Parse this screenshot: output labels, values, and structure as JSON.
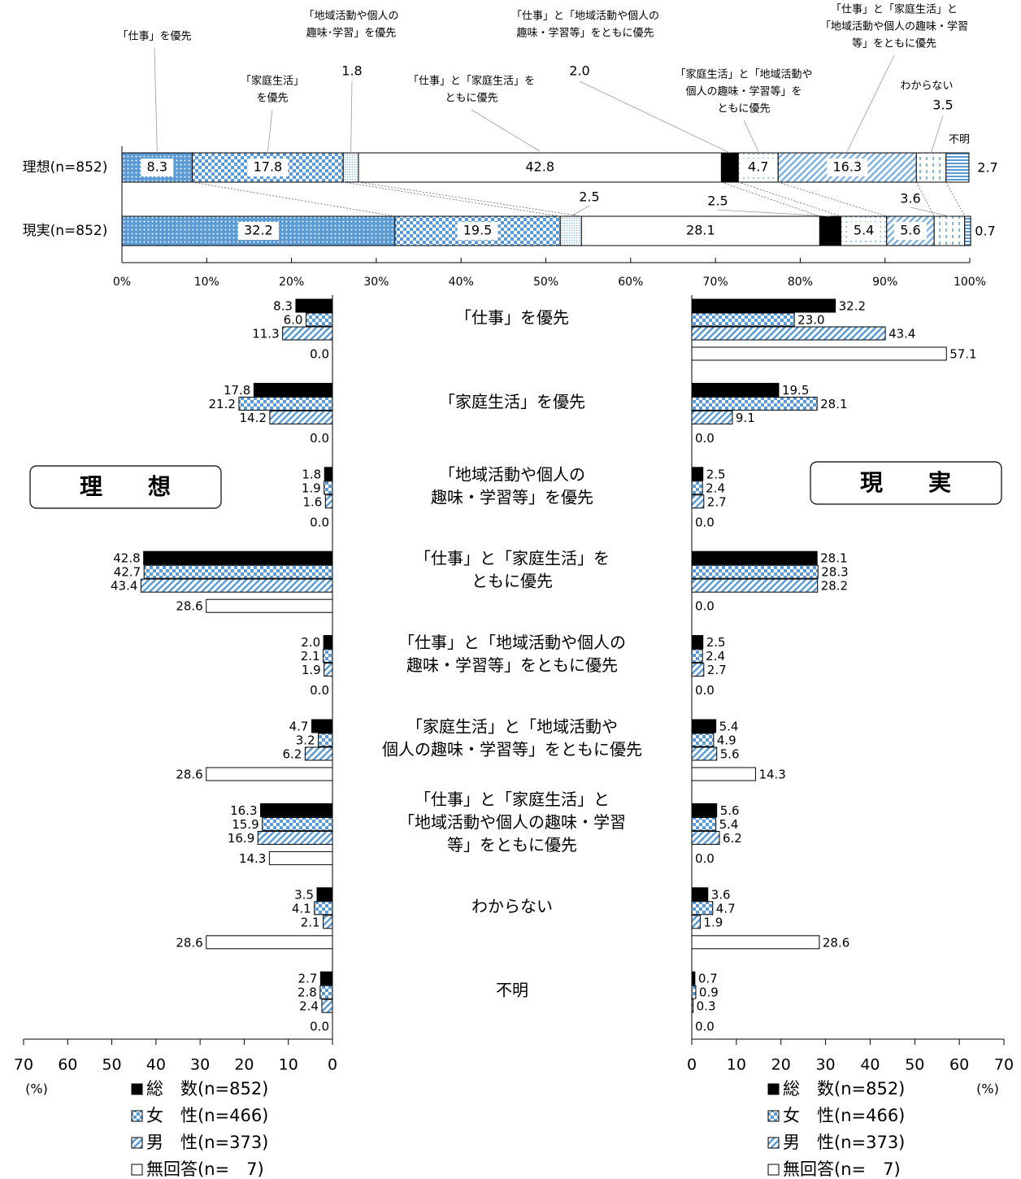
{
  "chart_data": [
    {
      "type": "stacked-bar-h",
      "categories": [
        "理想(n=852)",
        "現実(n=852)"
      ],
      "series": [
        {
          "name": [
            "「仕事」を優先"
          ],
          "color": "#5b9bd5",
          "values": [
            8.3,
            32.2
          ],
          "value_labels": [
            "8.3",
            "32.2"
          ]
        },
        {
          "name": [
            "「家庭生活」",
            "を優先"
          ],
          "color": "#5b9bd5",
          "values": [
            17.8,
            19.5
          ],
          "value_labels": [
            "17.8",
            "19.5"
          ]
        },
        {
          "name": [
            "「地域活動や個人の",
            "趣味･学習」を優先"
          ],
          "color": "#7fb2e0",
          "values": [
            1.8,
            2.5
          ],
          "value_labels": [
            "1.8",
            "2.5"
          ]
        },
        {
          "name": [
            "「仕事」と「家庭生活」を",
            "ともに優先"
          ],
          "color": "#ffffff",
          "values": [
            42.8,
            28.1
          ],
          "value_labels": [
            "42.8",
            "28.1"
          ]
        },
        {
          "name": [
            "「仕事」と「地域活動や個人の",
            "趣味・学習等」をともに優先"
          ],
          "color": "#000000",
          "values": [
            2.0,
            2.5
          ],
          "value_labels": [
            "2.0",
            "2.5"
          ]
        },
        {
          "name": [
            "「家庭生活」と「地域活動や",
            "個人の趣味・学習等」を",
            "ともに優先"
          ],
          "color": "#5b9bd5",
          "values": [
            4.7,
            5.4
          ],
          "value_labels": [
            "4.7",
            "5.4"
          ]
        },
        {
          "name": [
            "「仕事」と「家庭生活」と",
            "「地域活動や個人の趣味・学習",
            "等」をともに優先"
          ],
          "color": "#7fb2e0",
          "values": [
            16.3,
            5.6
          ],
          "value_labels": [
            "16.3",
            "5.6"
          ]
        },
        {
          "name": [
            "わからない"
          ],
          "color": "#5b9bd5",
          "values": [
            3.5,
            3.6
          ],
          "value_labels": [
            "3.5",
            "3.6"
          ]
        },
        {
          "name": [
            "不明"
          ],
          "color": "#5b9bd5",
          "values": [
            2.7,
            0.7
          ],
          "value_labels": [
            "2.7",
            "0.7"
          ]
        }
      ],
      "xlim": [
        0,
        100
      ],
      "xticks": [
        {
          "value": 0,
          "label": "0%"
        },
        {
          "value": 10,
          "label": "10%"
        },
        {
          "value": 20,
          "label": "20%"
        },
        {
          "value": 30,
          "label": "30%"
        },
        {
          "value": 40,
          "label": "40%"
        },
        {
          "value": 50,
          "label": "50%"
        },
        {
          "value": 60,
          "label": "60%"
        },
        {
          "value": 70,
          "label": "70%"
        },
        {
          "value": 80,
          "label": "80%"
        },
        {
          "value": 90,
          "label": "90%"
        },
        {
          "value": 100,
          "label": "100%"
        }
      ]
    },
    {
      "type": "grouped-bar-h",
      "label": "理　　想",
      "unit": "(%)",
      "categories": [
        [
          "「仕事」を優先"
        ],
        [
          "「家庭生活」を優先"
        ],
        [
          "「地域活動や個人の",
          "趣味・学習等」を優先"
        ],
        [
          "「仕事」と「家庭生活」を",
          "ともに優先"
        ],
        [
          "「仕事」と「地域活動や個人の",
          "趣味・学習等」をともに優先"
        ],
        [
          "「家庭生活」と「地域活動や",
          "個人の趣味・学習等」をともに優先"
        ],
        [
          "「仕事」と「家庭生活」と",
          "「地域活動や個人の趣味・学習",
          "等」をともに優先"
        ],
        [
          "わからない"
        ],
        [
          "不明"
        ]
      ],
      "series": [
        {
          "name": "総　数(n=852)",
          "color": "#000000",
          "values": [
            8.3,
            17.8,
            1.8,
            42.8,
            2.0,
            4.7,
            16.3,
            3.5,
            2.7
          ],
          "value_labels": [
            "8.3",
            "17.8",
            "1.8",
            "42.8",
            "2.0",
            "4.7",
            "16.3",
            "3.5",
            "2.7"
          ]
        },
        {
          "name": "女　性(n=466)",
          "color": "#5b9bd5",
          "values": [
            6.0,
            21.2,
            1.9,
            42.7,
            2.1,
            3.2,
            15.9,
            4.1,
            2.8
          ],
          "value_labels": [
            "6.0",
            "21.2",
            "1.9",
            "42.7",
            "2.1",
            "3.2",
            "15.9",
            "4.1",
            "2.8"
          ]
        },
        {
          "name": "男　性(n=373)",
          "color": "#5b9bd5",
          "values": [
            11.3,
            14.2,
            1.6,
            43.4,
            1.9,
            6.2,
            16.9,
            2.1,
            2.4
          ],
          "value_labels": [
            "11.3",
            "14.2",
            "1.6",
            "43.4",
            "1.9",
            "6.2",
            "16.9",
            "2.1",
            "2.4"
          ]
        },
        {
          "name": "無回答(n=　7)",
          "color": "#ffffff",
          "values": [
            0.0,
            0.0,
            0.0,
            28.6,
            0.0,
            28.6,
            14.3,
            28.6,
            0.0
          ],
          "value_labels": [
            "0.0",
            "0.0",
            "0.0",
            "28.6",
            "0.0",
            "28.6",
            "14.3",
            "28.6",
            "0.0"
          ]
        }
      ],
      "xlim": [
        70,
        0
      ],
      "xticks": [
        70,
        60,
        50,
        40,
        30,
        20,
        10,
        0
      ]
    },
    {
      "type": "grouped-bar-h",
      "label": "現　　実",
      "unit": "(%)",
      "series": [
        {
          "name": "総　数(n=852)",
          "color": "#000000",
          "values": [
            32.2,
            19.5,
            2.5,
            28.1,
            2.5,
            5.4,
            5.6,
            3.6,
            0.7
          ],
          "value_labels": [
            "32.2",
            "19.5",
            "2.5",
            "28.1",
            "2.5",
            "5.4",
            "5.6",
            "3.6",
            "0.7"
          ]
        },
        {
          "name": "女　性(n=466)",
          "color": "#5b9bd5",
          "values": [
            23.0,
            28.1,
            2.4,
            28.3,
            2.4,
            4.9,
            5.4,
            4.7,
            0.9
          ],
          "value_labels": [
            "23.0",
            "28.1",
            "2.4",
            "28.3",
            "2.4",
            "4.9",
            "5.4",
            "4.7",
            "0.9"
          ]
        },
        {
          "name": "男　性(n=373)",
          "color": "#5b9bd5",
          "values": [
            43.4,
            9.1,
            2.7,
            28.2,
            2.7,
            5.6,
            6.2,
            1.9,
            0.3
          ],
          "value_labels": [
            "43.4",
            "9.1",
            "2.7",
            "28.2",
            "2.7",
            "5.6",
            "6.2",
            "1.9",
            "0.3"
          ]
        },
        {
          "name": "無回答(n=　7)",
          "color": "#ffffff",
          "values": [
            57.1,
            0.0,
            0.0,
            0.0,
            0.0,
            14.3,
            0.0,
            28.6,
            0.0
          ],
          "value_labels": [
            "57.1",
            "0.0",
            "0.0",
            "0.0",
            "0.0",
            "14.3",
            "0.0",
            "28.6",
            "0.0"
          ]
        }
      ],
      "xlim": [
        0,
        70
      ],
      "xticks": [
        0,
        10,
        20,
        30,
        40,
        50,
        60,
        70
      ]
    }
  ]
}
